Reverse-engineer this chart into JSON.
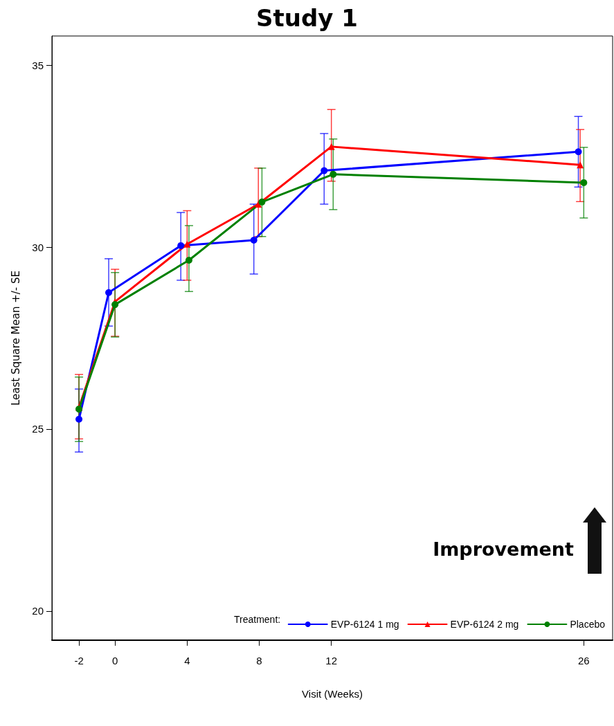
{
  "chart_data": {
    "type": "line",
    "title": "Study 1",
    "xlabel": "Visit (Weeks)",
    "ylabel": "Least Square Mean +/- SE",
    "legend_title": "Treatment:",
    "legend": "bottom right",
    "grid": false,
    "line_style": "solid",
    "xlim": [
      -3.5,
      27.6
    ],
    "xticks": [
      -2,
      0,
      4,
      8,
      12,
      26
    ],
    "ylim": [
      19.2,
      35.8
    ],
    "yticks": [
      20,
      25,
      30,
      35
    ],
    "annotations": [
      "Improvement"
    ],
    "series": [
      {
        "name": "EVP-6124 1 mg",
        "color": "#0000ff",
        "marker": "circle",
        "x": [
          -2,
          -0.35,
          3.65,
          7.7,
          11.6,
          25.7
        ],
        "values": [
          25.27,
          28.75,
          30.04,
          30.19,
          32.1,
          32.62
        ],
        "errors": [
          [
            24.37,
            26.1
          ],
          [
            27.83,
            29.68
          ],
          [
            29.09,
            30.95
          ],
          [
            29.26,
            31.18
          ],
          [
            31.18,
            33.12
          ],
          [
            31.65,
            33.59
          ]
        ]
      },
      {
        "name": "EVP-6124 2 mg",
        "color": "#ff0000",
        "marker": "triangle",
        "x": [
          -2,
          0,
          4,
          7.95,
          12,
          25.8
        ],
        "values": [
          25.6,
          28.5,
          30.08,
          31.18,
          32.76,
          32.26
        ],
        "errors": [
          [
            24.73,
            26.5
          ],
          [
            27.55,
            29.39
          ],
          [
            29.09,
            31.0
          ],
          [
            30.29,
            32.17
          ],
          [
            31.81,
            33.78
          ],
          [
            31.25,
            33.23
          ]
        ]
      },
      {
        "name": "Placebo",
        "color": "#008000",
        "marker": "circle",
        "x": [
          -2,
          0,
          4.1,
          8.15,
          12.1,
          26
        ],
        "values": [
          25.55,
          28.42,
          29.64,
          31.24,
          32.0,
          31.77
        ],
        "errors": [
          [
            24.66,
            26.43
          ],
          [
            27.53,
            29.3
          ],
          [
            28.78,
            30.59
          ],
          [
            30.29,
            32.17
          ],
          [
            31.03,
            32.97
          ],
          [
            30.8,
            32.74
          ]
        ]
      }
    ]
  }
}
